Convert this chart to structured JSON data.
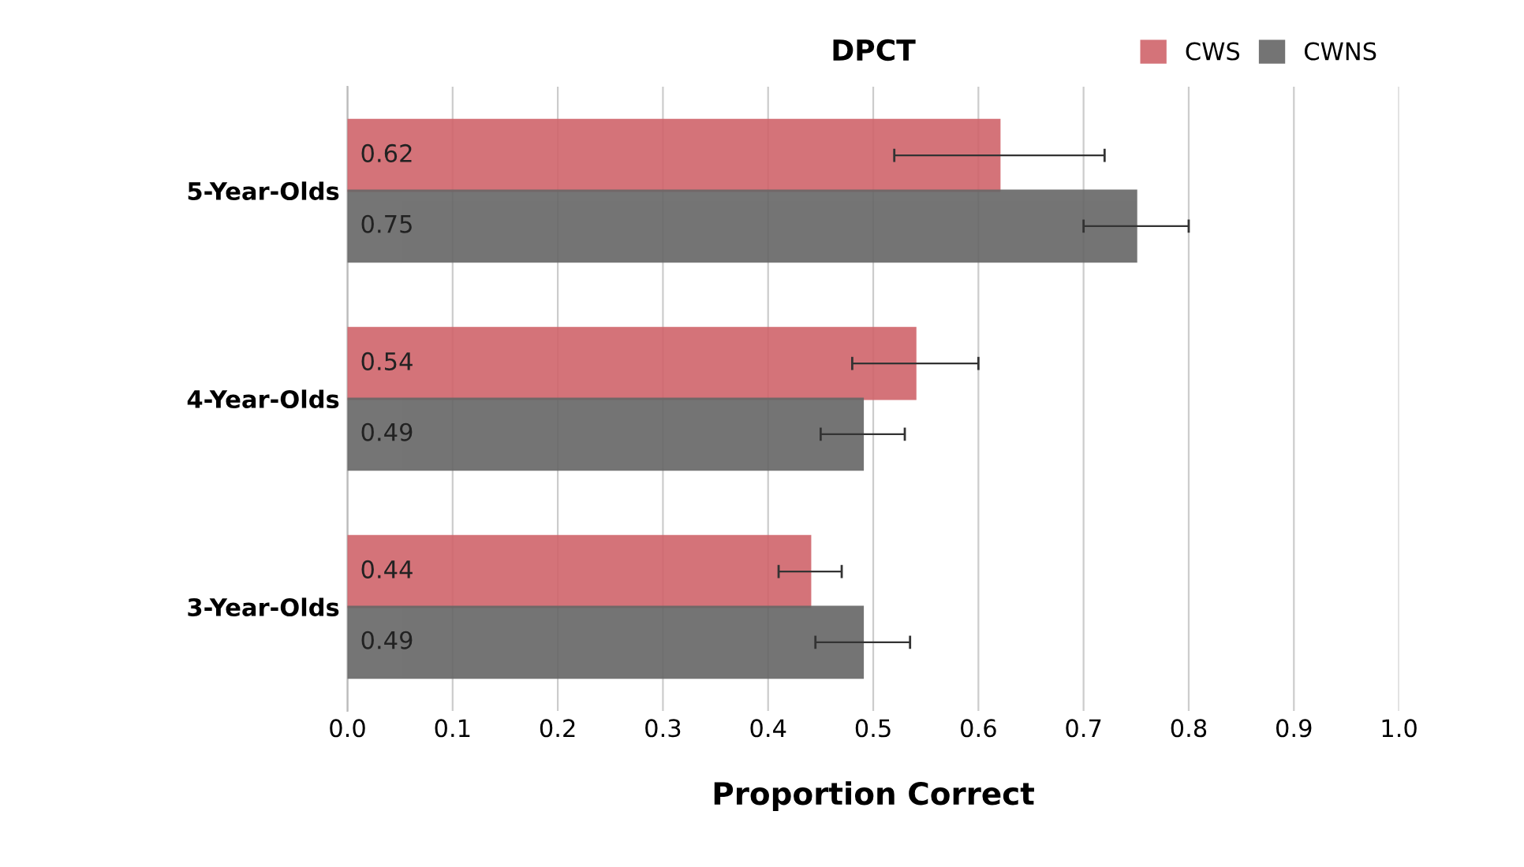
{
  "chart_data": {
    "type": "bar",
    "orientation": "horizontal",
    "title": "DPCT",
    "xlabel": "Proportion Correct",
    "categories": [
      "5-Year-Olds",
      "4-Year-Olds",
      "3-Year-Olds"
    ],
    "series": [
      {
        "name": "CWS",
        "color": "#d0646b",
        "values": [
          0.62,
          0.54,
          0.44
        ],
        "errors": [
          0.1,
          0.06,
          0.03
        ]
      },
      {
        "name": "CWNS",
        "color": "#666666",
        "values": [
          0.75,
          0.49,
          0.49
        ],
        "errors": [
          0.05,
          0.04,
          0.045
        ]
      }
    ],
    "xlim": [
      0.0,
      1.0
    ],
    "xticks": [
      {
        "value": 0,
        "label": "0.0"
      },
      0.1,
      0.2,
      0.3,
      0.4,
      0.5,
      0.6,
      0.7,
      0.8,
      0.9,
      {
        "value": 1,
        "label": "1.0"
      }
    ],
    "grid": "x",
    "legend": "top right",
    "data_labels": true
  }
}
